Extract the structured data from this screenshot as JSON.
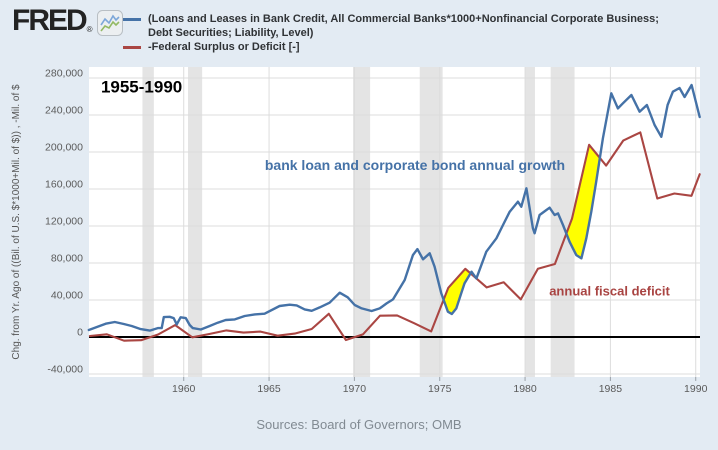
{
  "logo": {
    "brand": "FRED",
    "registered": "®",
    "icon": "line-chart"
  },
  "legend": {
    "items": [
      {
        "label": "(Loans and Leases in Bank Credit, All Commercial Banks*1000+Nonfinancial Corporate Business; Debt Securities; Liability, Level)",
        "color": "#4572a7"
      },
      {
        "label": "-Federal Surplus or Deficit [-]",
        "color": "#aa4643"
      }
    ]
  },
  "source_note": "Sources: Board of Governors; OMB",
  "chart_data": {
    "type": "line",
    "x_axis": {
      "min": 1954.45,
      "max": 1990.25,
      "ticks": [
        1960,
        1965,
        1970,
        1975,
        1980,
        1985,
        1990
      ],
      "grid": true
    },
    "y_axis": {
      "label": "Chg. from Yr. Ago of ((Bil. of U.S. $*1000+Mil. of $)) , -Mil. of $",
      "min": -43200,
      "max": 291900,
      "ticks": [
        -40000,
        0,
        40000,
        80000,
        120000,
        160000,
        200000,
        240000,
        280000
      ],
      "grid": true
    },
    "zero_line": 0,
    "colors": {
      "plot_bg": "#ffffff",
      "recession_band": "#e4e4e4",
      "gridline": "#dcdcdc",
      "zero_line": "#000000",
      "tick_text": "#5a5a5a",
      "axis_title_text": "#555555",
      "highlight": "#ffff00"
    },
    "recession_bands": [
      [
        1957.58,
        1958.25
      ],
      [
        1960.25,
        1961.08
      ],
      [
        1969.92,
        1970.92
      ],
      [
        1973.83,
        1975.17
      ],
      [
        1980.0,
        1980.58
      ],
      [
        1981.5,
        1982.9
      ]
    ],
    "series": [
      {
        "name": "(Loans and Leases in Bank Credit, All Commercial Banks*1000+Nonfinancial Corporate Business; Debt Securities; Liability, Level)",
        "color": "#4572a7",
        "width": 2.4,
        "points": [
          [
            1954.44,
            7600
          ],
          [
            1954.91,
            10800
          ],
          [
            1955.43,
            14400
          ],
          [
            1955.96,
            16200
          ],
          [
            1956.49,
            14100
          ],
          [
            1956.95,
            11900
          ],
          [
            1957.48,
            8600
          ],
          [
            1958.01,
            7000
          ],
          [
            1958.48,
            9700
          ],
          [
            1958.71,
            9700
          ],
          [
            1958.83,
            21600
          ],
          [
            1959.18,
            21900
          ],
          [
            1959.41,
            20500
          ],
          [
            1959.59,
            13700
          ],
          [
            1959.82,
            21300
          ],
          [
            1960.12,
            20500
          ],
          [
            1960.35,
            13000
          ],
          [
            1960.53,
            9700
          ],
          [
            1961.0,
            8100
          ],
          [
            1961.52,
            11900
          ],
          [
            1961.99,
            15500
          ],
          [
            1962.46,
            18400
          ],
          [
            1962.99,
            19100
          ],
          [
            1963.57,
            22700
          ],
          [
            1964.16,
            24500
          ],
          [
            1964.74,
            25200
          ],
          [
            1965.62,
            33500
          ],
          [
            1966.21,
            34900
          ],
          [
            1966.62,
            34200
          ],
          [
            1967.09,
            29900
          ],
          [
            1967.5,
            28400
          ],
          [
            1967.97,
            32000
          ],
          [
            1968.55,
            37100
          ],
          [
            1969.14,
            47900
          ],
          [
            1969.61,
            42900
          ],
          [
            1970.02,
            34600
          ],
          [
            1970.43,
            31000
          ],
          [
            1971.01,
            28100
          ],
          [
            1971.48,
            31000
          ],
          [
            1971.89,
            36400
          ],
          [
            1972.26,
            40700
          ],
          [
            1972.95,
            61600
          ],
          [
            1973.43,
            88600
          ],
          [
            1973.69,
            95100
          ],
          [
            1974.02,
            84000
          ],
          [
            1974.41,
            90500
          ],
          [
            1974.7,
            76000
          ],
          [
            1975.09,
            47200
          ],
          [
            1975.48,
            27400
          ],
          [
            1975.71,
            24900
          ],
          [
            1975.97,
            31000
          ],
          [
            1976.26,
            47200
          ],
          [
            1976.45,
            58000
          ],
          [
            1976.86,
            70600
          ],
          [
            1977.15,
            63400
          ],
          [
            1977.73,
            92200
          ],
          [
            1978.32,
            106700
          ],
          [
            1978.71,
            121100
          ],
          [
            1979.1,
            135500
          ],
          [
            1979.58,
            146300
          ],
          [
            1979.78,
            140900
          ],
          [
            1980.08,
            160800
          ],
          [
            1980.46,
            117500
          ],
          [
            1980.56,
            112100
          ],
          [
            1980.85,
            131900
          ],
          [
            1981.25,
            137300
          ],
          [
            1981.44,
            139800
          ],
          [
            1981.73,
            131900
          ],
          [
            1981.93,
            133700
          ],
          [
            1982.22,
            121100
          ],
          [
            1982.61,
            103000
          ],
          [
            1983.0,
            88600
          ],
          [
            1983.3,
            85100
          ],
          [
            1983.59,
            106700
          ],
          [
            1983.88,
            135500
          ],
          [
            1984.17,
            167900
          ],
          [
            1984.56,
            214800
          ],
          [
            1985.05,
            263500
          ],
          [
            1985.44,
            247200
          ],
          [
            1985.73,
            252700
          ],
          [
            1986.23,
            261600
          ],
          [
            1986.71,
            243600
          ],
          [
            1987.14,
            250800
          ],
          [
            1987.59,
            229200
          ],
          [
            1987.98,
            216500
          ],
          [
            1988.35,
            250800
          ],
          [
            1988.66,
            265200
          ],
          [
            1989.05,
            269200
          ],
          [
            1989.35,
            259500
          ],
          [
            1989.76,
            272400
          ],
          [
            1990.23,
            237800
          ]
        ]
      },
      {
        "name": "-Federal Surplus or Deficit [-]",
        "color": "#aa4643",
        "width": 2.1,
        "points": [
          [
            1954.5,
            1154
          ],
          [
            1955.5,
            2993
          ],
          [
            1956.5,
            -3947
          ],
          [
            1957.5,
            -3412
          ],
          [
            1958.5,
            2769
          ],
          [
            1959.5,
            12849
          ],
          [
            1960.5,
            -301
          ],
          [
            1961.5,
            3335
          ],
          [
            1962.5,
            7146
          ],
          [
            1963.5,
            4756
          ],
          [
            1964.5,
            5915
          ],
          [
            1965.5,
            1411
          ],
          [
            1966.5,
            3698
          ],
          [
            1967.5,
            8643
          ],
          [
            1968.5,
            25161
          ],
          [
            1969.5,
            -3242
          ],
          [
            1970.5,
            2842
          ],
          [
            1971.5,
            23033
          ],
          [
            1972.5,
            23373
          ],
          [
            1973.5,
            14908
          ],
          [
            1974.5,
            6135
          ],
          [
            1975.5,
            53242
          ],
          [
            1976.5,
            73732
          ],
          [
            1977.75,
            53659
          ],
          [
            1978.75,
            59185
          ],
          [
            1979.75,
            40726
          ],
          [
            1980.75,
            73830
          ],
          [
            1981.75,
            78968
          ],
          [
            1982.75,
            127977
          ],
          [
            1983.75,
            207802
          ],
          [
            1984.75,
            185367
          ],
          [
            1985.75,
            212308
          ],
          [
            1986.75,
            221227
          ],
          [
            1987.75,
            149730
          ],
          [
            1988.75,
            155178
          ],
          [
            1989.75,
            152639
          ],
          [
            1990.23,
            176000
          ]
        ]
      }
    ],
    "highlights": [
      {
        "color": "#ffff00",
        "rule": "fill where deficit line is above credit line",
        "x_range": [
          1974.9,
          1977.2
        ]
      },
      {
        "color": "#ffff00",
        "rule": "fill where deficit line is above credit line",
        "x_range": [
          1982.0,
          1984.7
        ]
      }
    ],
    "annotations": [
      {
        "text": "1955-1990",
        "x": 1955.15,
        "y": 271000,
        "color": "#000000",
        "font_size": 17,
        "anchor": "start"
      },
      {
        "text": "bank loan and corporate bond annual growth",
        "x": 1973.55,
        "y": 186000,
        "color": "#4572a7",
        "font_size": 14,
        "anchor": "middle"
      },
      {
        "text": "annual fiscal deficit",
        "x": 1984.95,
        "y": 50000,
        "color": "#a94442",
        "font_size": 13,
        "anchor": "middle"
      }
    ]
  }
}
